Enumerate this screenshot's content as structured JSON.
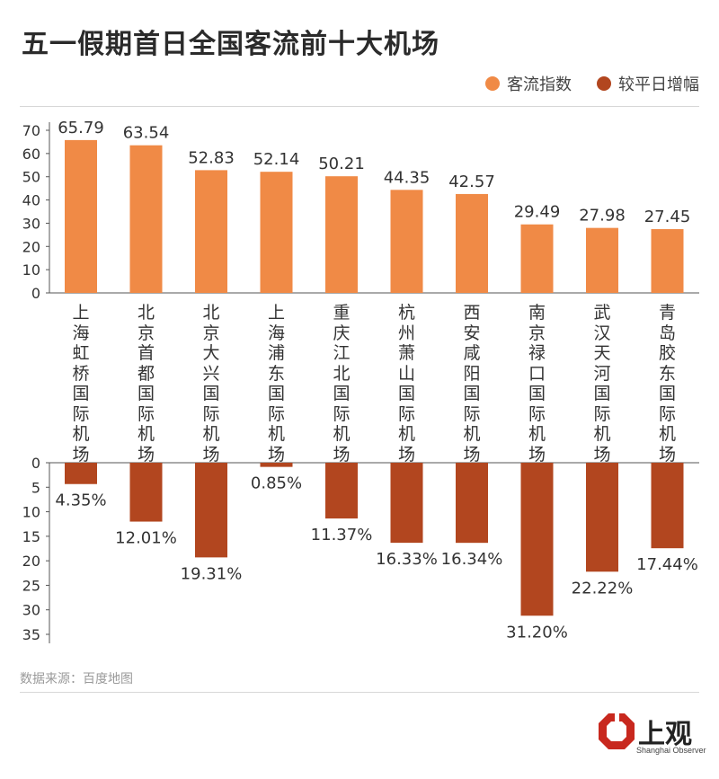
{
  "chart_data": {
    "type": "bar",
    "title": "五一假期首日全国客流前十大机场",
    "categories": [
      "上海虹桥国际机场",
      "北京首都国际机场",
      "北京大兴国际机场",
      "上海浦东国际机场",
      "重庆江北国际机场",
      "杭州萧山国际机场",
      "西安咸阳国际机场",
      "南京禄口国际机场",
      "武汉天河国际机场",
      "青岛胶东国际机场"
    ],
    "series": [
      {
        "name": "客流指数",
        "color": "#f08a46",
        "values": [
          65.79,
          63.54,
          52.83,
          52.14,
          50.21,
          44.35,
          42.57,
          29.49,
          27.98,
          27.45
        ],
        "labels": [
          "65.79",
          "63.54",
          "52.83",
          "52.14",
          "50.21",
          "44.35",
          "42.57",
          "29.49",
          "27.98",
          "27.45"
        ],
        "ylim": [
          0,
          70
        ],
        "ticks": [
          "0",
          "10",
          "20",
          "30",
          "40",
          "50",
          "60",
          "70"
        ]
      },
      {
        "name": "较平日增幅",
        "color": "#b2461f",
        "values": [
          4.35,
          12.01,
          19.31,
          0.85,
          11.37,
          16.33,
          16.34,
          31.2,
          22.22,
          17.44
        ],
        "labels": [
          "4.35%",
          "12.01%",
          "19.31%",
          "0.85%",
          "11.37%",
          "16.33%",
          "16.34%",
          "31.20%",
          "22.22%",
          "17.44%"
        ],
        "ylim": [
          0,
          35
        ],
        "ticks": [
          "0",
          "5",
          "10",
          "15",
          "20",
          "25",
          "30",
          "35"
        ],
        "direction": "downward"
      }
    ],
    "legend_position": "top-right",
    "grid": false
  },
  "source": "数据来源：百度地图",
  "logo": {
    "text": "上观",
    "subtext": "Shanghai Observer"
  }
}
